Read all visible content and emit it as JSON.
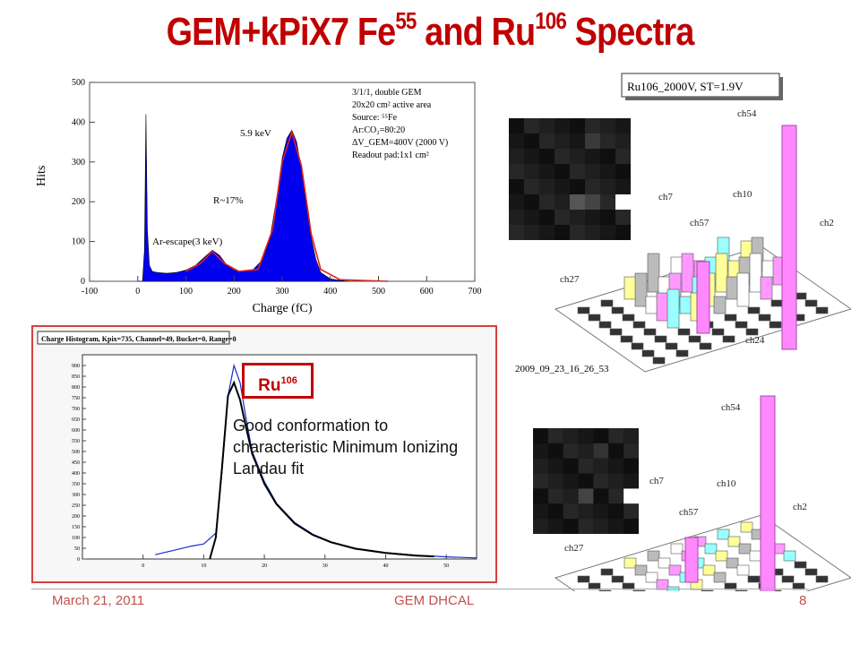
{
  "slide": {
    "title_main": "GEM+kPiX7 Fe",
    "title_sup1": "55",
    "title_and": " and Ru",
    "title_sup2": "106",
    "title_end": " Spectra",
    "footer_date": "March 21, 2011",
    "footer_center": "GEM DHCAL",
    "page_number": "8"
  },
  "fe_plot": {
    "ylabel": "Hits",
    "xlabel": "Charge (fC)",
    "info_lines": [
      "3/1/1, double GEM",
      "20x20 cm² active area",
      "Source: ⁵⁵Fe",
      "Ar:CO₂=80:20",
      "ΔV_GEM=400V (2000 V)",
      "Readout pad:1x1 cm²"
    ],
    "ann_peak": "5.9 keV",
    "ann_res": "R~17%",
    "ann_escape": "Ar-escape(3 keV)"
  },
  "ru_plot": {
    "header": "Charge Histogram, Kpix=735, Channel=49, Bucket=0, Range=0",
    "box_label": "Ru",
    "box_sup": "106",
    "note": "Good conformation to characteristic Minimum Ionizing Landau fit"
  },
  "lego": {
    "top_title": "Ru106_2000V, ST=1.9V",
    "top_timestamp": "2009_09_23_16_26_53",
    "labels": [
      "ch54",
      "ch7",
      "ch10",
      "ch57",
      "ch2",
      "ch27",
      "ch24"
    ]
  },
  "chart_data": [
    {
      "type": "area",
      "xlabel": "Charge (fC)",
      "ylabel": "Hits",
      "xlim": [
        -100,
        700
      ],
      "ylim": [
        0,
        500
      ],
      "x_ticks": [
        -100,
        0,
        100,
        200,
        300,
        400,
        500,
        600,
        700
      ],
      "y_ticks": [
        0,
        100,
        200,
        300,
        400,
        500
      ],
      "x": [
        0,
        10,
        14,
        17,
        20,
        24,
        30,
        40,
        60,
        80,
        100,
        120,
        140,
        155,
        170,
        185,
        200,
        220,
        240,
        260,
        275,
        290,
        300,
        310,
        320,
        330,
        340,
        350,
        360,
        370,
        380,
        400,
        420,
        440
      ],
      "series": [
        {
          "values": [
            0,
            0,
            80,
            420,
            130,
            40,
            25,
            22,
            20,
            22,
            28,
            40,
            62,
            78,
            65,
            40,
            28,
            25,
            30,
            55,
            110,
            220,
            310,
            360,
            380,
            350,
            280,
            190,
            110,
            55,
            22,
            6,
            2,
            0
          ]
        }
      ],
      "fit": {
        "x": [
          100,
          130,
          155,
          180,
          210,
          250,
          280,
          300,
          320,
          340,
          360,
          380,
          420,
          520
        ],
        "y": [
          25,
          45,
          75,
          45,
          25,
          30,
          130,
          300,
          375,
          290,
          120,
          30,
          4,
          0
        ]
      }
    },
    {
      "type": "line",
      "x_ticks": [
        0,
        10,
        20,
        30,
        40,
        50
      ],
      "y_ticks": [
        0,
        50,
        100,
        150,
        200,
        250,
        300,
        350,
        400,
        450,
        500,
        550,
        600,
        650,
        700,
        750,
        800,
        850,
        900
      ],
      "xlim": [
        -10,
        55
      ],
      "ylim": [
        0,
        950
      ],
      "x": [
        2,
        5,
        8,
        10,
        12,
        13,
        14,
        15,
        16,
        17,
        18,
        20,
        22,
        25,
        28,
        31,
        35,
        40,
        45,
        50,
        55
      ],
      "series": [
        {
          "values": [
            20,
            40,
            60,
            70,
            120,
            400,
            760,
            900,
            820,
            650,
            500,
            360,
            260,
            170,
            115,
            80,
            50,
            30,
            18,
            10,
            5
          ]
        }
      ],
      "fit": {
        "x": [
          11,
          12,
          13,
          14,
          15,
          16,
          17,
          18,
          20,
          22,
          25,
          28,
          31,
          35,
          40,
          45,
          48
        ],
        "y": [
          0,
          100,
          420,
          760,
          820,
          740,
          610,
          490,
          350,
          255,
          165,
          112,
          78,
          48,
          28,
          16,
          12
        ]
      }
    }
  ]
}
